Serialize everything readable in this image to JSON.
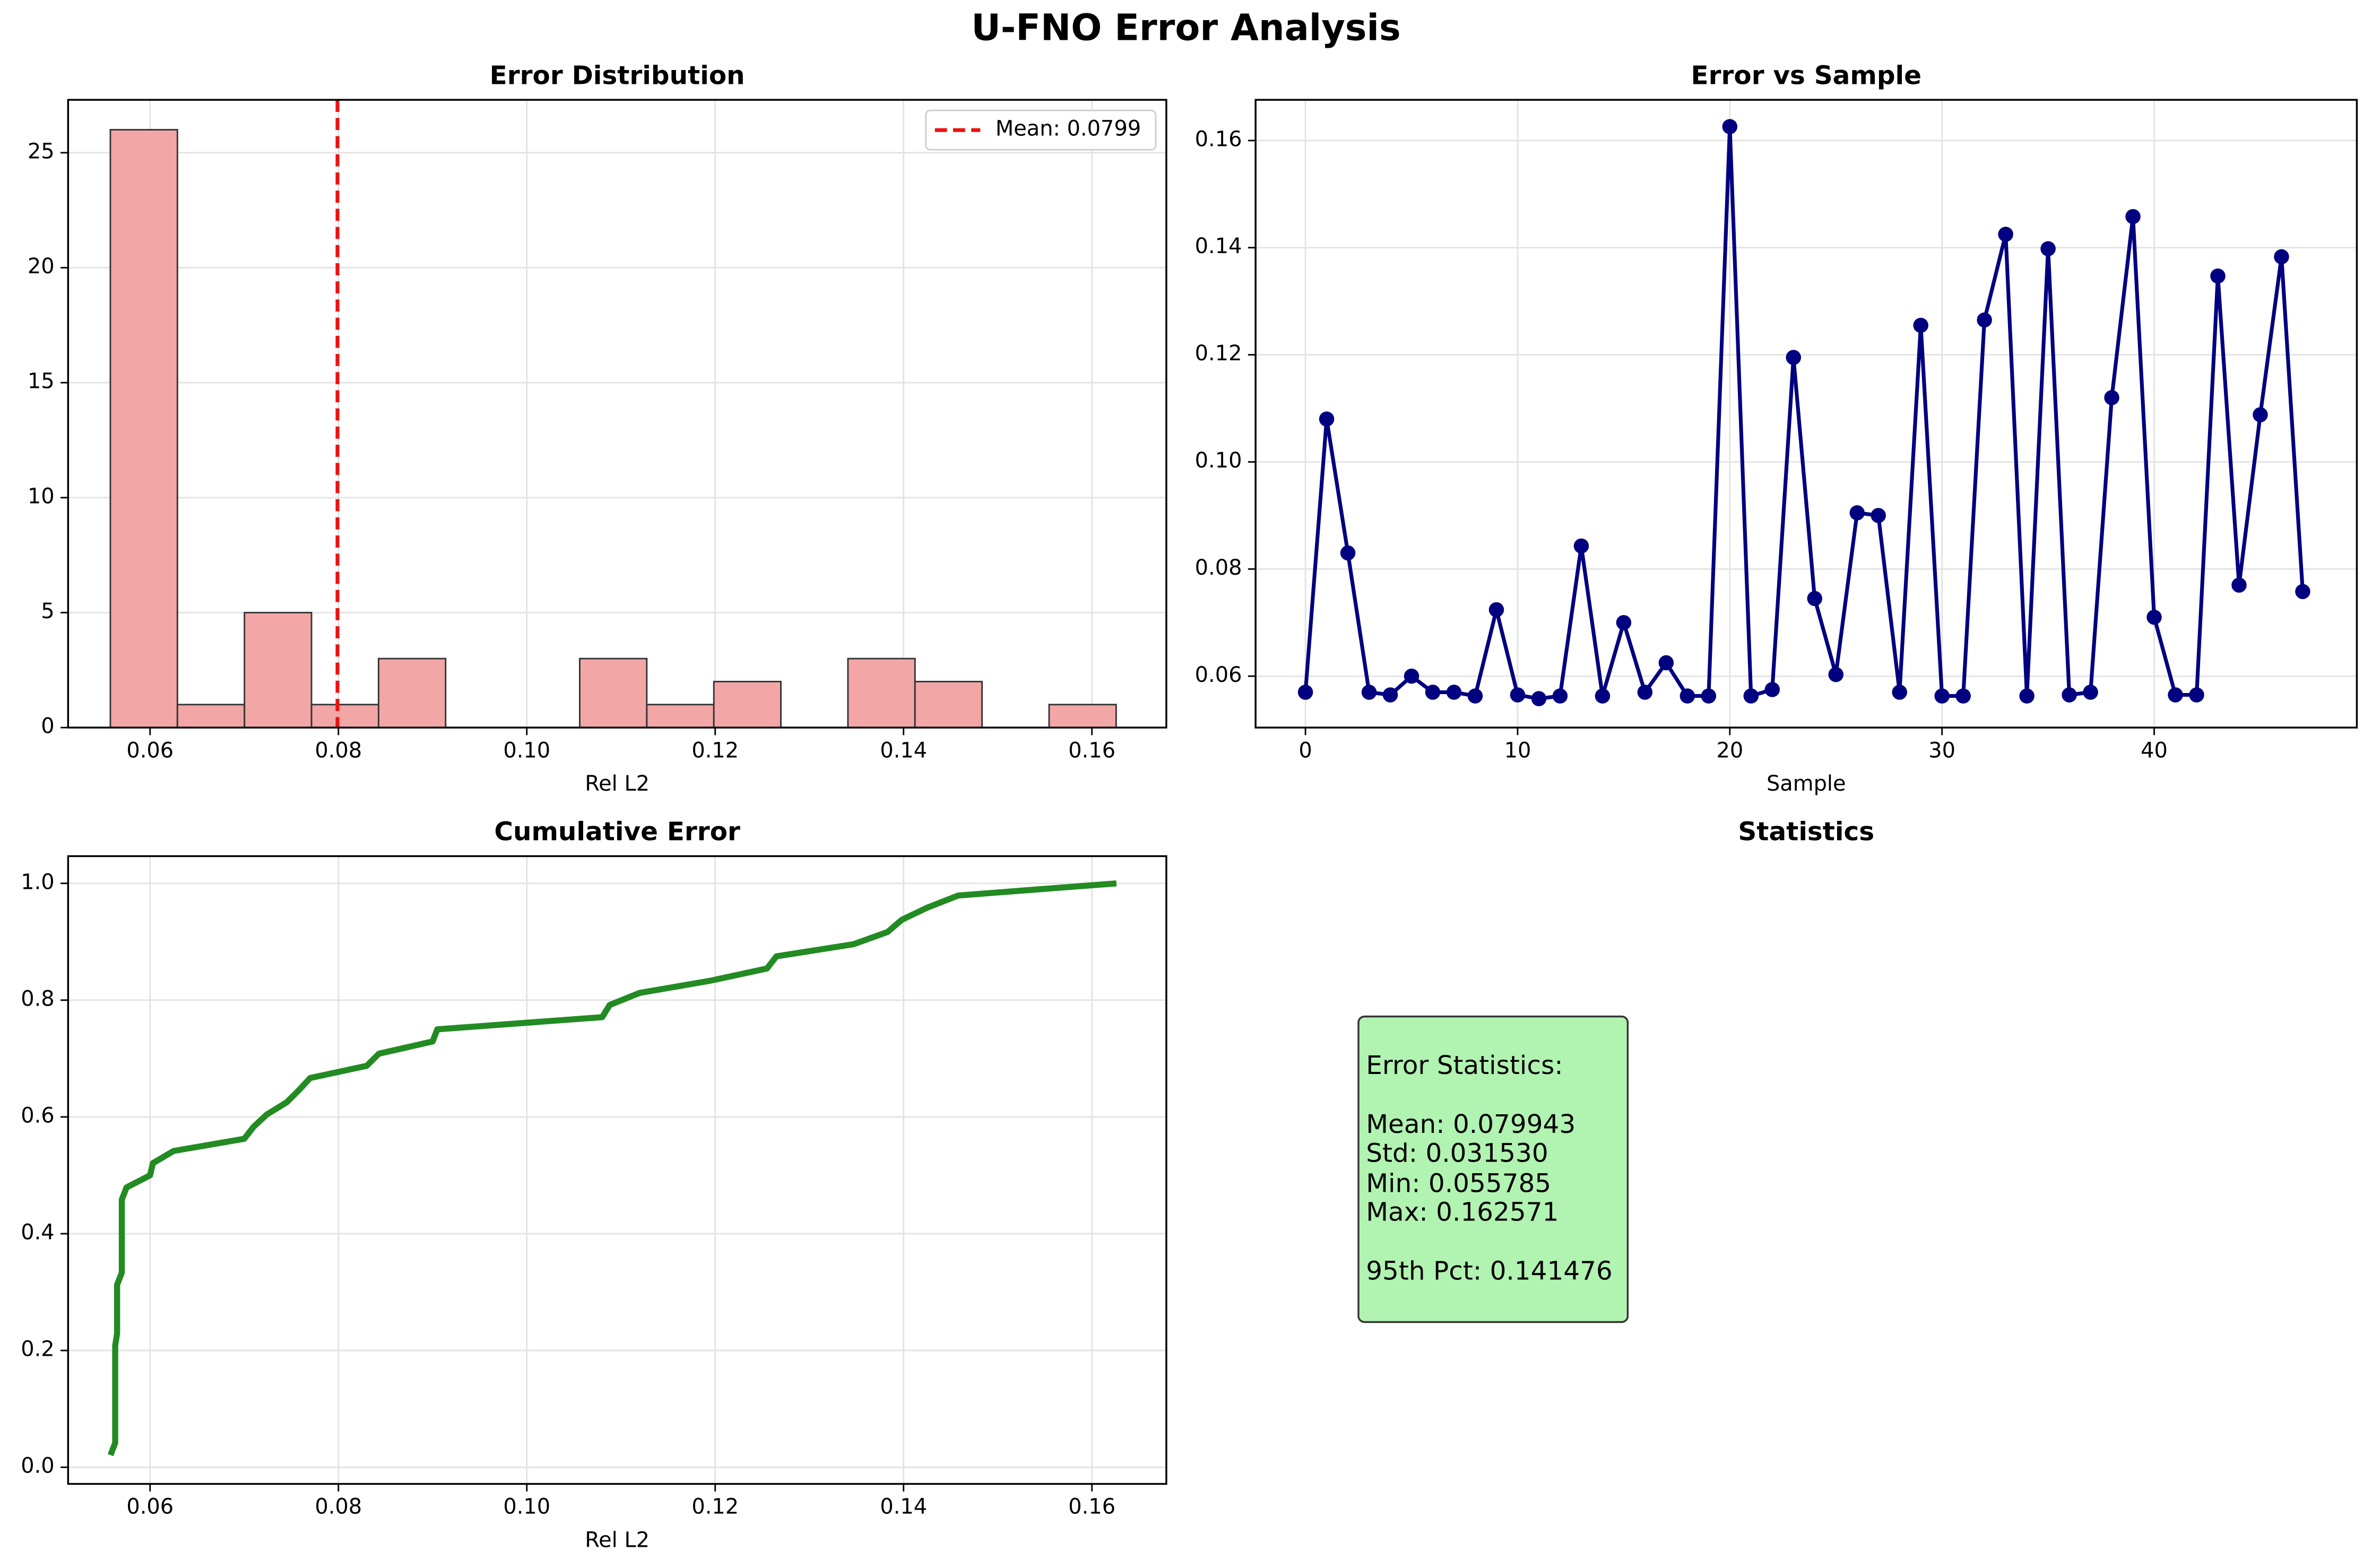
{
  "title": "U-FNO Error Analysis",
  "chart_data": [
    {
      "type": "histogram",
      "title": "Error Distribution",
      "xlabel": "Rel L2",
      "bins": [
        0.055785,
        0.062904,
        0.070023,
        0.077142,
        0.084261,
        0.09138,
        0.0985,
        0.105619,
        0.112738,
        0.119857,
        0.126976,
        0.134095,
        0.141214,
        0.148333,
        0.155452,
        0.162571
      ],
      "counts": [
        26,
        1,
        5,
        1,
        3,
        0,
        0,
        3,
        1,
        2,
        0,
        3,
        2,
        0,
        1
      ],
      "color": "#f2a6a6",
      "edgecolor": "#333333",
      "xlim": [
        0.0513,
        0.1679
      ],
      "ylim": [
        0,
        27.3
      ],
      "xticks": [
        0.06,
        0.08,
        {
          "value": 0.1,
          "label": "0.10"
        },
        0.12,
        0.14,
        0.16
      ],
      "yticks": [
        0,
        5,
        10,
        15,
        20,
        25
      ],
      "grid": true,
      "mean_line": {
        "value": 0.0799,
        "label": "Mean: 0.0799",
        "color": "#ee1111"
      },
      "legend": "upper right"
    },
    {
      "type": "line",
      "title": "Error vs Sample",
      "xlabel": "Sample",
      "color": "#000080",
      "markers": true,
      "x": [
        0,
        1,
        2,
        3,
        4,
        5,
        6,
        7,
        8,
        9,
        10,
        11,
        12,
        13,
        14,
        15,
        16,
        17,
        18,
        19,
        20,
        21,
        22,
        23,
        24,
        25,
        26,
        27,
        28,
        29,
        30,
        31,
        32,
        33,
        34,
        35,
        36,
        37,
        38,
        39,
        40,
        41,
        42,
        43,
        44,
        45,
        46,
        47
      ],
      "values": [
        0.057,
        0.108,
        0.083,
        0.057,
        0.0565,
        0.06,
        0.057,
        0.057,
        0.0563,
        0.0724,
        0.0565,
        0.0558,
        0.0563,
        0.0843,
        0.0563,
        0.07,
        0.057,
        0.0625,
        0.0563,
        0.0563,
        0.1626,
        0.0563,
        0.0575,
        0.1195,
        0.0745,
        0.0603,
        0.0905,
        0.09,
        0.057,
        0.1255,
        0.0563,
        0.0563,
        0.1265,
        0.1425,
        0.0563,
        0.1398,
        0.0565,
        0.057,
        0.112,
        0.1458,
        0.071,
        0.0565,
        0.0565,
        0.1347,
        0.077,
        0.1088,
        0.1383,
        0.0758
      ],
      "xlim": [
        -2.35,
        49.55
      ],
      "ylim": [
        0.0504,
        0.1676
      ],
      "xticks": [
        0,
        10,
        20,
        30,
        40
      ],
      "yticks": [
        0.06,
        0.08,
        {
          "value": 0.1,
          "label": "0.10"
        },
        0.12,
        0.14,
        0.16
      ],
      "grid": true
    },
    {
      "type": "line",
      "title": "Cumulative Error",
      "xlabel": "Rel L2",
      "color": "#228b22",
      "markers": false,
      "x": [
        0.0558,
        0.0563,
        0.0563,
        0.0563,
        0.0563,
        0.0563,
        0.0563,
        0.0563,
        0.0563,
        0.0563,
        0.0565,
        0.0565,
        0.0565,
        0.0565,
        0.0565,
        0.057,
        0.057,
        0.057,
        0.057,
        0.057,
        0.057,
        0.057,
        0.0575,
        0.06,
        0.0603,
        0.0625,
        0.07,
        0.071,
        0.0724,
        0.0745,
        0.0758,
        0.077,
        0.083,
        0.0843,
        0.09,
        0.0905,
        0.108,
        0.1088,
        0.112,
        0.1195,
        0.1255,
        0.1265,
        0.1347,
        0.1383,
        0.1398,
        0.1425,
        0.1458,
        0.1626
      ],
      "values": [
        0.0208,
        0.0417,
        0.0625,
        0.0833,
        0.1042,
        0.125,
        0.1458,
        0.1667,
        0.1875,
        0.2083,
        0.2292,
        0.25,
        0.2708,
        0.2917,
        0.3125,
        0.3333,
        0.3542,
        0.375,
        0.3958,
        0.4167,
        0.4375,
        0.4583,
        0.4792,
        0.5,
        0.5208,
        0.5417,
        0.5625,
        0.5833,
        0.6042,
        0.625,
        0.6458,
        0.6667,
        0.6875,
        0.7083,
        0.7292,
        0.75,
        0.7708,
        0.7917,
        0.8125,
        0.8333,
        0.8542,
        0.875,
        0.8958,
        0.9167,
        0.9375,
        0.9583,
        0.9792,
        1
      ],
      "xlim": [
        0.0513,
        0.1679
      ],
      "ylim": [
        -0.0285,
        1.0466
      ],
      "xticks": [
        0.06,
        0.08,
        {
          "value": 0.1,
          "label": "0.10"
        },
        0.12,
        0.14,
        0.16
      ],
      "yticks": [
        {
          "value": 0,
          "label": "0.0"
        },
        0.2,
        0.4,
        0.6,
        0.8,
        {
          "value": 1,
          "label": "1.0"
        }
      ],
      "grid": true
    }
  ],
  "statistics": {
    "title": "Statistics",
    "heading": "Error Statistics:",
    "lines": [
      "Mean: 0.079943",
      "Std: 0.031530",
      "Min: 0.055785",
      "Max: 0.162571"
    ],
    "percentile": "95th Pct: 0.141476"
  }
}
